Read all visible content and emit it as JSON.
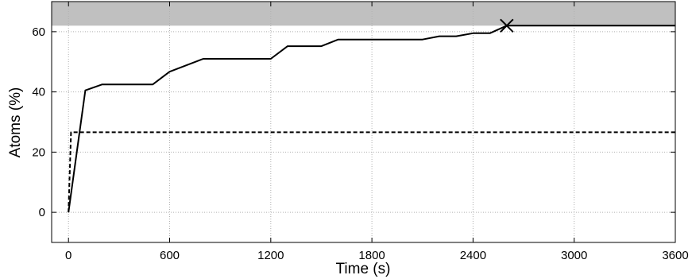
{
  "chart_data": {
    "type": "line",
    "title": "",
    "xlabel": "Time (s)",
    "ylabel": "Atoms (%)",
    "xlim": [
      -100,
      3600
    ],
    "ylim": [
      -10,
      70
    ],
    "xticks": [
      0,
      600,
      1200,
      1800,
      2400,
      3000,
      3600
    ],
    "yticks": [
      0,
      20,
      40,
      60
    ],
    "grid": true,
    "shaded_region": {
      "y_from": 62,
      "y_to": 70,
      "color": "#c0c0c0"
    },
    "series": [
      {
        "style": "solid",
        "color": "#000000",
        "x": [
          0,
          100,
          200,
          500,
          600,
          800,
          1200,
          1300,
          1500,
          1600,
          2100,
          2200,
          2300,
          2400,
          2500,
          2600,
          3600
        ],
        "y": [
          0,
          40.5,
          42.5,
          42.5,
          46.7,
          51,
          51,
          55.2,
          55.2,
          57.4,
          57.4,
          58.5,
          58.5,
          59.5,
          59.5,
          62,
          62
        ]
      },
      {
        "style": "dashed",
        "color": "#000000",
        "x": [
          0,
          15,
          3600
        ],
        "y": [
          0,
          26.6,
          26.6
        ]
      }
    ],
    "annotations": [
      {
        "marker": "x",
        "x": 2600,
        "y": 62
      }
    ]
  }
}
